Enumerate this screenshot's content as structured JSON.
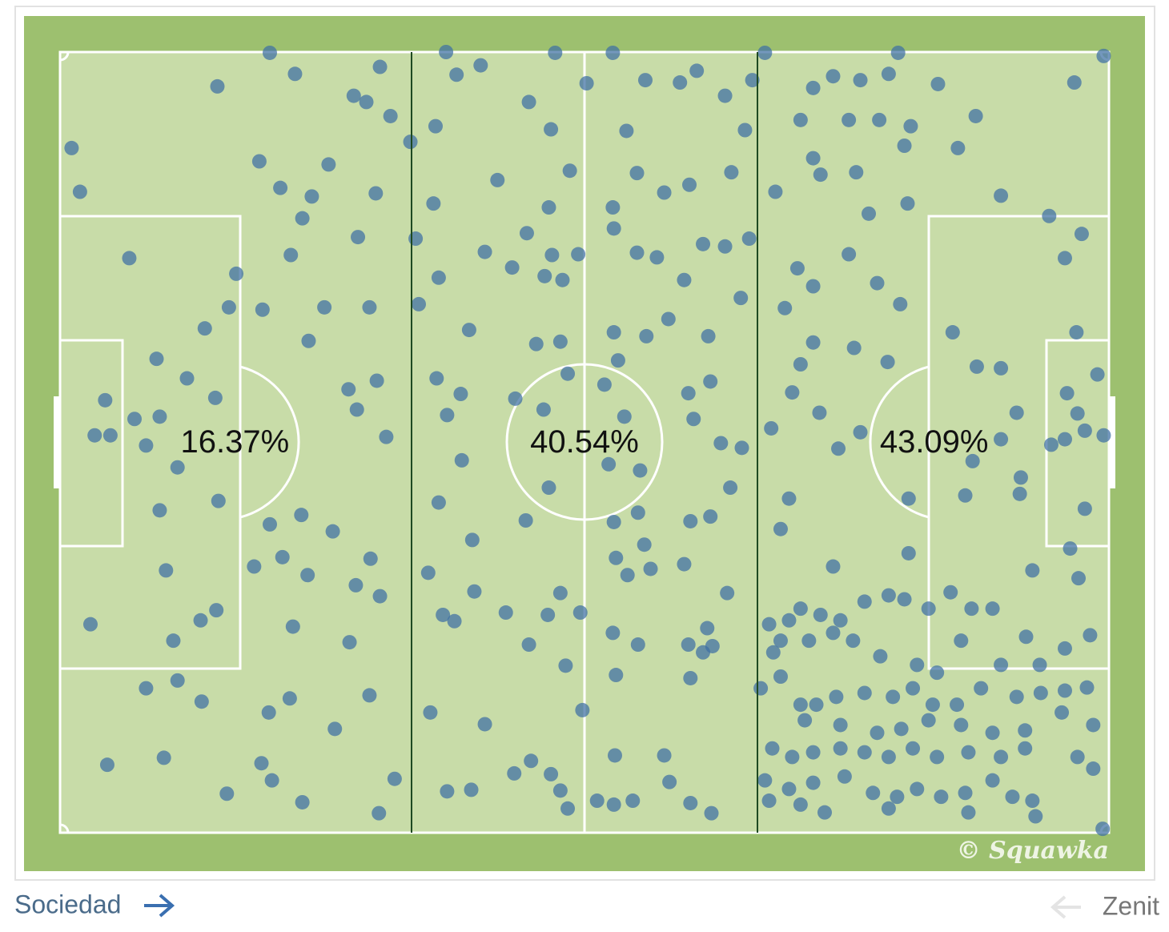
{
  "chart_data": {
    "type": "scatter",
    "color": "#3d6fa3",
    "xlim": [
      0,
      100
    ],
    "ylim": [
      0,
      100
    ],
    "zones": {
      "values": [
        16.37,
        40.54,
        43.09
      ],
      "value_labels": [
        "16.37%",
        "40.54%",
        "43.09%"
      ]
    },
    "watermark": "© Squawka",
    "x": [
      1.1,
      1.9,
      6.6,
      15,
      20,
      22.4,
      19,
      21,
      25.6,
      24,
      23.1,
      22,
      16.8,
      16.1,
      13.8,
      19.3,
      25.2,
      23.7,
      9.2,
      12.1,
      14.8,
      4.3,
      3.3,
      4.8,
      7.1,
      9.5,
      8.2,
      11.2,
      15.1,
      9.5,
      10.1,
      2.9,
      10.8,
      13.4,
      14.9,
      8.2,
      11.2,
      13.5,
      4.5,
      9.9,
      15.9,
      19.2,
      20.2,
      23.1,
      19.9,
      21.9,
      26.2,
      27.6,
      22.2,
      23.6,
      21.2,
      18.5,
      20,
      23,
      26,
      29.5,
      30.4,
      31.9,
      29.6,
      30.5,
      28.2,
      27.5,
      28.3,
      30.2,
      31.1,
      29.5,
      28.4,
      30.1,
      28,
      29.2,
      30.5,
      31.5,
      36.8,
      40.1,
      37.8,
      35.8,
      33.4,
      35.6,
      33.9,
      36.1,
      34.2,
      39,
      40.5,
      41.7,
      44.7,
      46.8,
      47.2,
      50.2,
      52.7,
      54,
      55.8,
      59.1,
      60.7,
      55,
      57.6,
      60,
      52.7,
      48.6,
      46.6,
      44.5,
      46.9,
      43.1,
      46.2,
      47.9,
      49.4,
      52.8,
      55,
      56.9,
      59.5,
      61.3,
      63.4,
      52.8,
      55.9,
      58,
      61.8,
      45.4,
      47.7,
      43.4,
      46.1,
      48.4,
      51.9,
      53.2,
      53.8,
      35.9,
      38.2,
      36.9,
      38.3,
      36.1,
      39.3,
      44.4,
      46.6,
      52.3,
      55.3,
      55.1,
      52.8,
      55.7,
      53,
      54.1,
      56.3,
      35.1,
      36.5,
      37.6,
      39.5,
      42.5,
      44.7,
      46.5,
      47.7,
      49.6,
      52.7,
      55.1,
      53,
      48.2,
      49.8,
      40.5,
      35.3,
      36.9,
      39.2,
      43.3,
      44.9,
      46.8,
      47.7,
      48.4,
      51.2,
      52.8,
      54.6,
      52.9,
      57.6,
      58.1,
      60.1,
      62.1,
      59.9,
      61.7,
      61.3,
      60.1,
      62.2,
      63.6,
      59.5,
      60.1,
      62,
      63.9,
      63,
      65,
      59.9,
      60.4,
      62,
      64.9,
      65.7,
      64,
      65.3,
      63.4,
      66,
      67.2,
      71.8,
      73.7,
      76.3,
      79,
      79.9,
      83.7,
      87.3,
      85.6,
      80.5,
      78.1,
      81.1,
      70.6,
      75.2,
      71.8,
      72.5,
      75.9,
      68.2,
      77.1,
      80.8,
      89.7,
      96.7,
      99.5,
      94.3,
      97.4,
      95.8,
      70.3,
      71.8,
      75.2,
      77.9,
      80.1,
      69.1,
      71.8,
      75.7,
      78.9,
      70.6,
      85.1,
      87.4,
      89.7,
      91.2,
      96.9,
      96,
      97,
      98.9,
      95.8,
      97.7,
      99.5,
      94.5,
      89.7,
      87,
      91.6,
      86.3,
      91.5,
      97.7,
      96.3,
      92.7,
      97.1,
      88.9,
      84.9,
      86.9,
      82.8,
      80.9,
      73.7,
      80.9,
      67.8,
      72.4,
      74.2,
      76.3,
      69.8,
      69.5,
      68.7,
      70.6,
      72.5,
      74.4,
      76.7,
      79,
      80.5,
      67.6,
      69.5,
      68.7,
      71.4,
      73.7,
      75.6,
      78.2,
      81.7,
      83.6,
      85.9,
      89.7,
      92.1,
      93.4,
      95.8,
      98.2,
      68,
      66.8,
      68.7,
      70.6,
      72.1,
      74,
      76.7,
      79.4,
      81.3,
      83.2,
      85.5,
      87.8,
      91.2,
      93.5,
      95.8,
      97.9,
      71,
      74.4,
      77.9,
      80.2,
      82.8,
      85.9,
      88.9,
      92,
      95.5,
      98.5,
      67.9,
      69.8,
      71.8,
      74.4,
      76.7,
      79,
      81.3,
      83.6,
      86.6,
      89.7,
      92,
      97,
      67.2,
      69.5,
      71.8,
      74.8,
      77.5,
      79.8,
      81.7,
      84,
      86.3,
      88.9,
      90.8,
      92.7,
      98.5,
      99.4,
      67.6,
      70.6,
      72.9,
      79,
      86.6,
      93
    ],
    "values": [
      87.7,
      82.1,
      73.6,
      95.6,
      99.9,
      97.2,
      86,
      82.6,
      85.6,
      81.5,
      78.7,
      74,
      71.6,
      67.3,
      64.6,
      67,
      67.3,
      63,
      60.7,
      58.2,
      55.7,
      55.4,
      50.9,
      50.9,
      53,
      53.3,
      49.6,
      46.8,
      42.5,
      41.3,
      33.6,
      26.7,
      24.6,
      27.2,
      28.5,
      18.5,
      19.5,
      16.8,
      8.7,
      9.6,
      5,
      8.9,
      6.7,
      3.9,
      15.4,
      17.2,
      13.3,
      24.4,
      26.4,
      33,
      35.3,
      34.1,
      39.5,
      40.7,
      38.6,
      17.6,
      2.5,
      6.9,
      35.1,
      30.3,
      31.7,
      56.8,
      54.2,
      57.9,
      50.7,
      67.3,
      76.3,
      81.9,
      94.4,
      93.6,
      98.1,
      91.8,
      100,
      98.3,
      97.1,
      90.5,
      88.5,
      80.6,
      76.1,
      71.1,
      67.7,
      64.4,
      74.4,
      83.6,
      93.6,
      90.1,
      99.9,
      96,
      99.9,
      89.9,
      96.4,
      96.1,
      97.6,
      84.5,
      82,
      83,
      80.1,
      84.8,
      80.1,
      76.8,
      74,
      72.4,
      71.3,
      70.8,
      74.1,
      77.4,
      74.3,
      73.7,
      70.8,
      75.4,
      75.1,
      64.1,
      63.6,
      65.8,
      63.6,
      62.6,
      62.9,
      55.6,
      54.2,
      58.8,
      57.4,
      60.5,
      53.3,
      58.2,
      56.2,
      53.5,
      47.7,
      42.3,
      37.5,
      40,
      44.2,
      47.2,
      46.4,
      41,
      39.8,
      36.9,
      35.2,
      33,
      33.8,
      33.3,
      27.9,
      27.1,
      30.9,
      28.2,
      24.1,
      27.9,
      30.7,
      28.2,
      25.6,
      24.1,
      20.2,
      21.4,
      15.7,
      13.9,
      15.4,
      5.3,
      5.5,
      7.6,
      9.2,
      7.5,
      5.4,
      3.1,
      4.1,
      3.6,
      4.1,
      9.9,
      9.9,
      6.5,
      3.8,
      2.5,
      24.1,
      26.2,
      23.1,
      19.8,
      23.9,
      30.7,
      34.4,
      39.9,
      40.5,
      44.2,
      49.9,
      49.3,
      56.3,
      53,
      57.8,
      68.5,
      76.1,
      84.6,
      90,
      94.4,
      96.4,
      99.9,
      95.4,
      96.9,
      96.4,
      97.2,
      99.9,
      95.9,
      91.8,
      87.7,
      88,
      91.3,
      90.5,
      91.3,
      91.3,
      86.4,
      84.3,
      84.6,
      82.1,
      79.3,
      80.6,
      81.6,
      96.1,
      99.5,
      79,
      76.7,
      73.6,
      72.3,
      70,
      74.1,
      70.4,
      67.7,
      67.2,
      62.8,
      62.1,
      60.3,
      60,
      64.1,
      59.7,
      59.5,
      53.8,
      64.1,
      56.3,
      53.7,
      58.7,
      50.4,
      51.5,
      50.9,
      49.7,
      50.4,
      47.6,
      45.5,
      43.2,
      43.4,
      41.5,
      36.4,
      33.6,
      32.6,
      28.7,
      30.8,
      28.7,
      28.7,
      35.8,
      34.1,
      42.8,
      51.8,
      53.8,
      49.2,
      51.3,
      56.4,
      42.8,
      38.9,
      28.7,
      27.9,
      27.2,
      29.6,
      30.4,
      29.9,
      26.7,
      27.2,
      24.6,
      24.6,
      25.6,
      24.6,
      22.6,
      21.5,
      20.5,
      24.6,
      21.5,
      25.1,
      21.5,
      23.6,
      25.3,
      23.1,
      18.5,
      20,
      16.4,
      16.4,
      17.4,
      17.9,
      17.4,
      18.5,
      16.4,
      16.4,
      18.5,
      17.4,
      17.9,
      18.2,
      18.6,
      14.4,
      13.8,
      12.8,
      13.3,
      14.4,
      13.8,
      12.8,
      13.1,
      15.4,
      13.8,
      10.8,
      9.7,
      10.3,
      10.8,
      10.3,
      9.7,
      10.8,
      9.7,
      10.3,
      9.7,
      10.8,
      9.7,
      6.7,
      5.6,
      6.4,
      7.2,
      5.1,
      4.6,
      5.6,
      4.6,
      5.1,
      6.7,
      4.6,
      4.1,
      8.2,
      0.5,
      4.1,
      3.6,
      2.6,
      3.1,
      2.6,
      2.1
    ]
  },
  "footer": {
    "left": "Sociedad",
    "right": "Zenit"
  }
}
